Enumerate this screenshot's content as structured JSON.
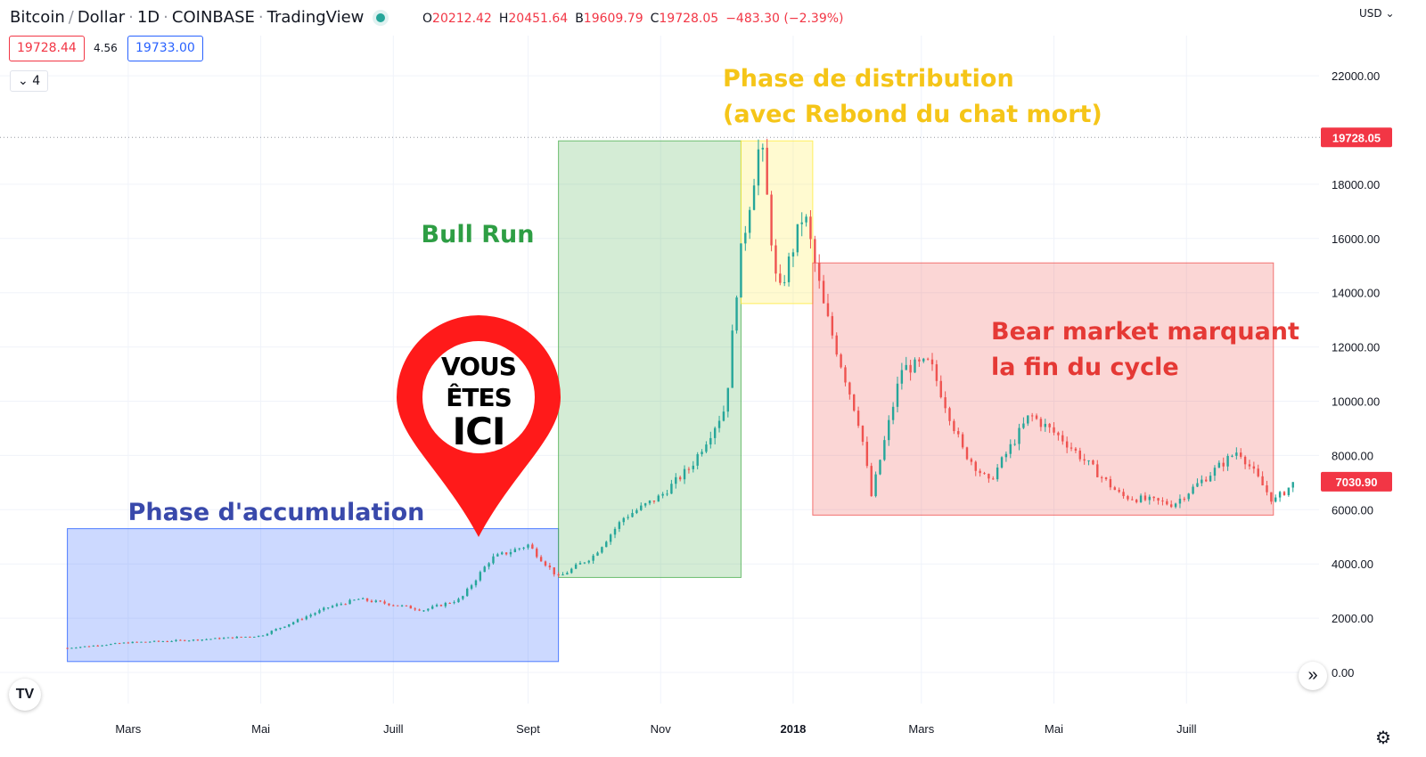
{
  "header": {
    "symbol": "Bitcoin",
    "quote": "Dollar",
    "interval": "1D",
    "exchange": "COINBASE",
    "platform": "TradingView",
    "ohlc": {
      "o_label": "O",
      "o": "20212.42",
      "h_label": "H",
      "h": "20451.64",
      "l_label": "B",
      "l": "19609.79",
      "c_label": "C",
      "c": "19728.05",
      "change": "−483.30 (−2.39%)"
    }
  },
  "trade": {
    "sell": "19728.44",
    "spread": "4.56",
    "buy": "19733.00"
  },
  "indicators": {
    "label": "4"
  },
  "currency": "USD",
  "colors": {
    "up": "#26a69a",
    "down": "#ef5350",
    "accent": "#2962ff",
    "price_tag": "#f23645"
  },
  "icons": {
    "logo": "tradingview-logo-icon",
    "scroll": "chevrons-right-icon",
    "settings": "gear-icon",
    "collapse": "chevron-down-icon"
  },
  "chart_data": {
    "type": "candlestick",
    "title": "",
    "x_ticks": [
      "Mars",
      "Mai",
      "Juill",
      "Sept",
      "Nov",
      "2018",
      "Mars",
      "Mai",
      "Juill"
    ],
    "y_ticks": [
      "0.00",
      "2000.00",
      "4000.00",
      "6000.00",
      "8000.00",
      "10000.00",
      "12000.00",
      "14000.00",
      "16000.00",
      "18000.00",
      "22000.00"
    ],
    "ylim": [
      0,
      22500
    ],
    "x": [
      "2017-02-01",
      "2017-03-01",
      "2017-04-01",
      "2017-05-01",
      "2017-06-01",
      "2017-06-15",
      "2017-07-01",
      "2017-07-15",
      "2017-08-01",
      "2017-08-15",
      "2017-09-01",
      "2017-09-15",
      "2017-10-01",
      "2017-10-15",
      "2017-11-01",
      "2017-11-15",
      "2017-12-01",
      "2017-12-07",
      "2017-12-17",
      "2017-12-25",
      "2018-01-06",
      "2018-01-15",
      "2018-02-01",
      "2018-02-06",
      "2018-02-20",
      "2018-03-05",
      "2018-03-20",
      "2018-04-01",
      "2018-04-20",
      "2018-05-05",
      "2018-06-01",
      "2018-06-25",
      "2018-07-25",
      "2018-08-10",
      "2018-08-20"
    ],
    "series": [
      {
        "values": [
          900,
          1100,
          1200,
          1350,
          2400,
          2700,
          2500,
          2300,
          2700,
          4200,
          4700,
          3500,
          4300,
          5700,
          6500,
          7600,
          9800,
          15000,
          19700,
          13800,
          17000,
          13500,
          9000,
          6500,
          11200,
          11400,
          8200,
          7000,
          9500,
          8600,
          6500,
          6200,
          8200,
          6300,
          7030
        ]
      }
    ],
    "price_labels": {
      "last": "19728.05",
      "current": "7030.90"
    },
    "zones": [
      {
        "label": "Phase d'accumulation",
        "x_start": "2017-02-01",
        "x_end": "2017-09-15",
        "y_low": 400,
        "y_high": 5300,
        "color": "#2962ff"
      },
      {
        "label": "Bull Run",
        "x_start": "2017-09-15",
        "x_end": "2017-12-08",
        "y_low": 3500,
        "y_high": 19600,
        "color": "#4caf50"
      },
      {
        "label_line1": "Phase de distribution",
        "label_line2": "(avec Rebond du chat mort)",
        "x_start": "2017-12-08",
        "x_end": "2018-01-10",
        "y_low": 13600,
        "y_high": 19600,
        "color": "#ffeb3b"
      },
      {
        "label_line1": "Bear market marquant",
        "label_line2": "la fin du cycle",
        "x_start": "2018-01-10",
        "x_end": "2018-08-10",
        "y_low": 5800,
        "y_high": 15100,
        "color": "#ef5350"
      }
    ],
    "marker": {
      "line1": "VOUS",
      "line2": "ÊTES",
      "line3": "ICI",
      "x": "2017-08-25",
      "y": 5200
    },
    "grid": true
  }
}
